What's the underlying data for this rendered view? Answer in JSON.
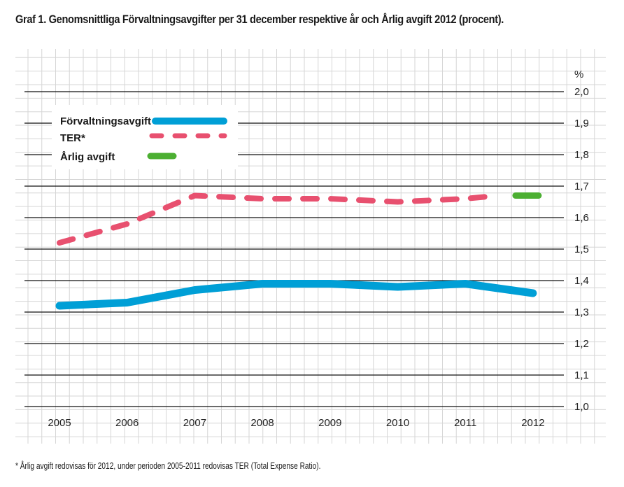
{
  "title": "Graf 1. Genomsnittliga Förvaltningsavgifter per 31 december respektive år och Årlig avgift 2012 (procent).",
  "footnote": "* Årlig avgift redovisas för 2012, under perioden 2005-2011 redovisas TER (Total Expense Ratio).",
  "chart_data": {
    "type": "line",
    "title": "Graf 1. Genomsnittliga Förvaltningsavgifter per 31 december respektive år och Årlig avgift 2012 (procent).",
    "xlabel": "",
    "ylabel": "%",
    "x": [
      "2005",
      "2006",
      "2007",
      "2008",
      "2009",
      "2010",
      "2011",
      "2012"
    ],
    "ylim": [
      1.0,
      2.0
    ],
    "yticks": [
      "1,0",
      "1,1",
      "1,2",
      "1,3",
      "1,4",
      "1,5",
      "1,6",
      "1,7",
      "1,8",
      "1,9",
      "2,0"
    ],
    "ytick_values": [
      1.0,
      1.1,
      1.2,
      1.3,
      1.4,
      1.5,
      1.6,
      1.7,
      1.8,
      1.9,
      2.0
    ],
    "grid": true,
    "legend_position": "top-left",
    "series": [
      {
        "name": "Förvaltningsavgift",
        "color": "#009fd6",
        "style": "solid",
        "values": [
          1.32,
          1.33,
          1.37,
          1.39,
          1.39,
          1.38,
          1.39,
          1.36
        ]
      },
      {
        "name": "TER*",
        "color": "#e8506f",
        "style": "dashed",
        "values": [
          1.52,
          1.58,
          1.67,
          1.66,
          1.66,
          1.65,
          1.66,
          null
        ]
      },
      {
        "name": "Årlig avgift",
        "color": "#4caf32",
        "style": "solid",
        "values": [
          null,
          null,
          null,
          null,
          null,
          null,
          null,
          1.67
        ]
      }
    ]
  }
}
